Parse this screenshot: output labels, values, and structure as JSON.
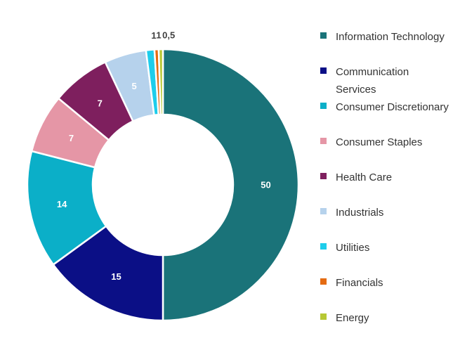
{
  "chart_data": {
    "type": "donut",
    "title": "",
    "legend_position": "right",
    "series": [
      {
        "name": "Information Technology",
        "value": 50,
        "label": "50",
        "color": "#1A7379"
      },
      {
        "name": "Communication Services",
        "value": 15,
        "label": "15",
        "color": "#0B0F86"
      },
      {
        "name": "Consumer Discretionary",
        "value": 14,
        "label": "14",
        "color": "#0BAFC8"
      },
      {
        "name": "Consumer Staples",
        "value": 7,
        "label": "7",
        "color": "#E596A6"
      },
      {
        "name": "Health Care",
        "value": 7,
        "label": "7",
        "color": "#7E1F5E"
      },
      {
        "name": "Industrials",
        "value": 5,
        "label": "5",
        "color": "#B6D2EC"
      },
      {
        "name": "Utilities",
        "value": 1,
        "label": "1",
        "color": "#1ECDEB"
      },
      {
        "name": "Financials",
        "value": 0.5,
        "label": "1",
        "color": "#E46B12"
      },
      {
        "name": "Energy",
        "value": 0.5,
        "label": "0,5",
        "color": "#B7C834"
      }
    ]
  }
}
